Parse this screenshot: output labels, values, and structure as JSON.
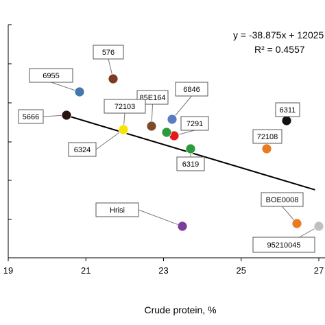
{
  "chart_data": {
    "type": "scatter",
    "xlabel": "Crude protein, %",
    "ylabel": "",
    "xlim": [
      19,
      27
    ],
    "ylim": [
      210,
      570
    ],
    "x_ticks": [
      "19",
      "21",
      "23",
      "25",
      "27"
    ],
    "grid": false,
    "legend": "none",
    "trendline": {
      "equation": "y = -38.875x + 12025",
      "r_squared": "R² = 0.4557",
      "slope": -38.875,
      "intercept": 12025,
      "x_range": [
        20.6,
        26.9
      ]
    },
    "points": [
      {
        "label": "576",
        "x": 21.7,
        "y": 476,
        "color": "#7d3a26"
      },
      {
        "label": "6955",
        "x": 20.8,
        "y": 456,
        "color": "#4478a8"
      },
      {
        "label": "5666",
        "x": 20.5,
        "y": 413,
        "color": "#2a1210"
      },
      {
        "label": "85E164",
        "x": 22.7,
        "y": 401,
        "color": "#7d4a2a"
      },
      {
        "label": "6846",
        "x": 23.25,
        "y": 409,
        "color": "#5a7cc0"
      },
      {
        "label": "72103",
        "x": 21.95,
        "y": 397,
        "color": "#f4e400"
      },
      {
        "label": "6324",
        "x": 21.95,
        "y": 397,
        "color": "#f4e400"
      },
      {
        "label": "7291",
        "x": 23.3,
        "y": 390,
        "color": "#e41a1c"
      },
      {
        "label": "",
        "x": 23.05,
        "y": 393,
        "color": "#2e9a3e"
      },
      {
        "label": "6319",
        "x": 23.7,
        "y": 375,
        "color": "#2e9a3e"
      },
      {
        "label": "6311",
        "x": 26.7,
        "y": 407,
        "color": "#111111"
      },
      {
        "label": "72108",
        "x": 25.7,
        "y": 375,
        "color": "#ea7a1e"
      },
      {
        "label": "Hrisi",
        "x": 23.5,
        "y": 262,
        "color": "#7b3f9a"
      },
      {
        "label": "BOE0008",
        "x": 26.5,
        "y": 267,
        "color": "#ea7a1e"
      },
      {
        "label": "95210045",
        "x": 27.0,
        "y": 262,
        "color": "#c0c0c0"
      }
    ]
  }
}
